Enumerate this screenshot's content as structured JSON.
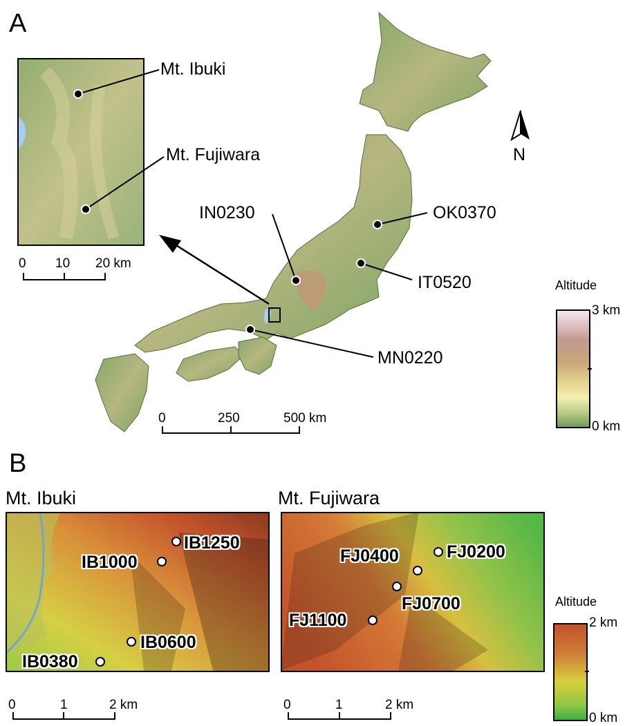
{
  "panelA": {
    "letter": "A",
    "inset_labels": {
      "ibuki": "Mt. Ibuki",
      "fujiwara": "Mt. Fujiwara"
    },
    "inset_scale": {
      "ticks": [
        "0",
        "10",
        "20 km"
      ]
    },
    "sites": [
      {
        "name": "IN0230"
      },
      {
        "name": "OK0370"
      },
      {
        "name": "IT0520"
      },
      {
        "name": "MN0220"
      }
    ],
    "north_label": "N",
    "main_scale": {
      "ticks": [
        "0",
        "250",
        "500 km"
      ]
    },
    "legend": {
      "title": "Altitude",
      "max": "3 km",
      "min": "0 km"
    }
  },
  "panelB": {
    "letter": "B",
    "ibuki": {
      "title": "Mt. Ibuki",
      "sites": [
        "IB1250",
        "IB1000",
        "IB0600",
        "IB0380"
      ],
      "scale": {
        "ticks": [
          "0",
          "1",
          "2 km"
        ]
      }
    },
    "fujiwara": {
      "title": "Mt. Fujiwara",
      "sites": [
        "FJ0200",
        "FJ0400",
        "FJ0700",
        "FJ1100"
      ],
      "scale": {
        "ticks": [
          "0",
          "1",
          "2 km"
        ]
      }
    },
    "legend": {
      "title": "Altitude",
      "max": "2 km",
      "min": "0 km"
    }
  },
  "colors": {
    "lowland_green": "#7aa364",
    "highland_brown": "#b98a68",
    "snow_pink": "#f5dde8",
    "relief_red": "#c4522c",
    "relief_green": "#3cb043",
    "relief_yellow": "#d8cf3e"
  }
}
